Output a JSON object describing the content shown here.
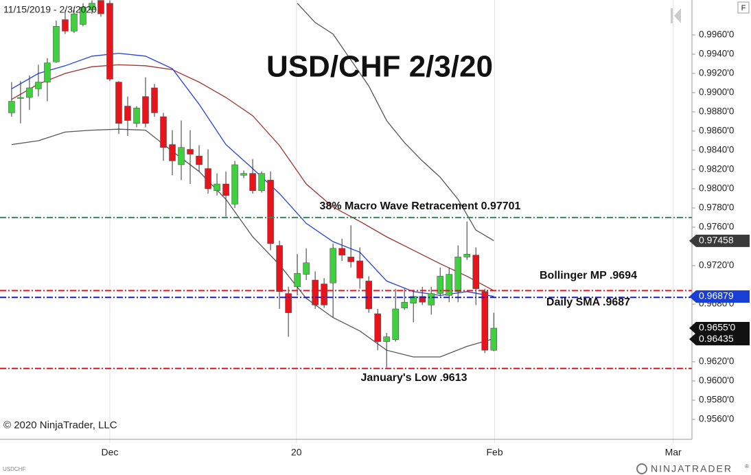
{
  "chart_data": {
    "type": "candlestick",
    "title": "USD/CHF 2/3/20",
    "subtitle": "11/15/2019 - 2/3/2020",
    "instrument": "USDCHF",
    "copyright": "© 2020 NinjaTrader, LLC",
    "brand": "NINJATRADER",
    "brand_mark": "®",
    "panel_button": "F",
    "x": [
      0,
      1,
      2,
      3,
      4,
      5,
      6,
      7,
      8,
      9,
      10,
      11,
      12,
      13,
      14,
      15,
      16,
      17,
      18,
      19,
      20,
      21,
      22,
      23,
      24,
      25,
      26,
      27,
      28,
      29,
      30,
      31,
      32,
      33,
      34,
      35,
      36,
      37,
      38,
      39,
      40,
      41,
      42,
      43,
      44,
      45,
      46,
      47,
      48,
      49,
      50,
      51,
      52,
      53,
      54
    ],
    "open": [
      0.9879,
      0.9894,
      0.9895,
      0.9904,
      0.9911,
      0.9932,
      0.9976,
      0.9964,
      0.9971,
      0.9986,
      0.9996,
      0.9993,
      0.9911,
      0.9886,
      0.9868,
      0.9896,
      0.9905,
      0.9875,
      0.9846,
      0.9825,
      0.9841,
      0.9834,
      0.9821,
      0.9798,
      0.9805,
      0.9784,
      0.9814,
      0.9816,
      0.9798,
      0.9809,
      0.9741,
      0.9691,
      0.9698,
      0.9711,
      0.9705,
      0.9701,
      0.9702,
      0.9738,
      0.9729,
      0.9725,
      0.9704,
      0.967,
      0.9641,
      0.9643,
      0.9676,
      0.9681,
      0.9688,
      0.9679,
      0.9691,
      0.9689,
      0.9693,
      0.9729,
      0.9731,
      0.9693,
      0.9632
    ],
    "high": [
      0.9911,
      0.9912,
      0.9918,
      0.9929,
      0.9936,
      0.9975,
      0.9986,
      0.9989,
      0.9993,
      0.9996,
      0.9996,
      0.9996,
      0.9912,
      0.9896,
      0.9886,
      0.9916,
      0.9909,
      0.9879,
      0.9861,
      0.9871,
      0.9861,
      0.9845,
      0.9841,
      0.9816,
      0.9818,
      0.9829,
      0.9819,
      0.9831,
      0.9818,
      0.9818,
      0.9746,
      0.9698,
      0.9732,
      0.9738,
      0.9714,
      0.9707,
      0.9743,
      0.9748,
      0.9762,
      0.9739,
      0.9709,
      0.9675,
      0.965,
      0.9696,
      0.9696,
      0.9693,
      0.9698,
      0.9698,
      0.9718,
      0.9718,
      0.9741,
      0.9766,
      0.9739,
      0.9696,
      0.9671
    ],
    "low": [
      0.9875,
      0.9868,
      0.9882,
      0.9896,
      0.9891,
      0.9931,
      0.9961,
      0.9962,
      0.9969,
      0.9982,
      0.9979,
      0.9912,
      0.9857,
      0.9855,
      0.9864,
      0.9864,
      0.9875,
      0.9829,
      0.9814,
      0.9809,
      0.9805,
      0.9818,
      0.9795,
      0.9793,
      0.9771,
      0.978,
      0.9811,
      0.9795,
      0.9796,
      0.9736,
      0.9675,
      0.9646,
      0.9689,
      0.9705,
      0.9675,
      0.9676,
      0.9666,
      0.9725,
      0.9718,
      0.9696,
      0.9671,
      0.9632,
      0.9614,
      0.9641,
      0.9674,
      0.9661,
      0.9679,
      0.9669,
      0.9688,
      0.9682,
      0.9682,
      0.9726,
      0.9679,
      0.9629,
      0.9631
    ],
    "close": [
      0.9891,
      0.9895,
      0.9905,
      0.9911,
      0.9931,
      0.9969,
      0.9964,
      0.9982,
      0.9989,
      0.9993,
      0.9982,
      0.9914,
      0.9868,
      0.9871,
      0.9884,
      0.9868,
      0.9879,
      0.9843,
      0.9829,
      0.9843,
      0.9836,
      0.9825,
      0.98,
      0.9805,
      0.9793,
      0.9825,
      0.9816,
      0.9798,
      0.9816,
      0.9743,
      0.9693,
      0.9671,
      0.9712,
      0.9723,
      0.9679,
      0.9679,
      0.9738,
      0.9731,
      0.9724,
      0.9707,
      0.9675,
      0.9641,
      0.9646,
      0.9675,
      0.9682,
      0.9688,
      0.9682,
      0.9691,
      0.9709,
      0.9711,
      0.9729,
      0.9732,
      0.9696,
      0.9632,
      0.9655
    ],
    "up_color": "#3fcf3f",
    "down_color": "#e8141c",
    "lines": [
      {
        "color": "#555555",
        "x": [
          32,
          34,
          36,
          38,
          40,
          42,
          44,
          46,
          48,
          50,
          52,
          54
        ],
        "values": [
          0.9993,
          0.9973,
          0.9961,
          0.9934,
          0.9907,
          0.9871,
          0.9848,
          0.9829,
          0.9812,
          0.9789,
          0.9757,
          0.9746
        ]
      },
      {
        "color": "#555555",
        "x": [
          0,
          3,
          6,
          9,
          12,
          15,
          18,
          21,
          24,
          27,
          30,
          33,
          36,
          39,
          42,
          45,
          48,
          51,
          54
        ],
        "values": [
          0.9846,
          0.985,
          0.9859,
          0.9861,
          0.9862,
          0.9861,
          0.9839,
          0.9818,
          0.9789,
          0.975,
          0.9721,
          0.9686,
          0.9666,
          0.9652,
          0.9632,
          0.9625,
          0.9625,
          0.9636,
          0.9644
        ]
      },
      {
        "color": "#a0302a",
        "x": [
          0,
          3,
          6,
          9,
          12,
          15,
          18,
          21,
          24,
          27,
          30,
          33,
          36,
          39,
          42,
          45,
          48,
          51,
          54
        ],
        "values": [
          0.9893,
          0.9909,
          0.992,
          0.9927,
          0.9929,
          0.9928,
          0.9924,
          0.9911,
          0.9895,
          0.9876,
          0.9845,
          0.9805,
          0.9781,
          0.9766,
          0.975,
          0.9736,
          0.9722,
          0.9709,
          0.9694
        ]
      },
      {
        "color": "#2040e0",
        "x": [
          0,
          3,
          6,
          9,
          12,
          15,
          18,
          21,
          24,
          27,
          30,
          33,
          36,
          39,
          42,
          45,
          48,
          51,
          54
        ],
        "values": [
          0.9904,
          0.992,
          0.9928,
          0.9938,
          0.9941,
          0.9938,
          0.9925,
          0.9888,
          0.9846,
          0.9821,
          0.9795,
          0.9764,
          0.9745,
          0.9734,
          0.9704,
          0.9693,
          0.9689,
          0.9693,
          0.9688
        ]
      }
    ],
    "hlines": [
      {
        "value": 0.97701,
        "color": "#2e8b57"
      },
      {
        "value": 0.9694,
        "color": "#e0141e"
      },
      {
        "value": 0.9687,
        "color": "#1a1acc"
      },
      {
        "value": 0.9613,
        "color": "#e0141e"
      }
    ],
    "annotations": [
      "38% Macro Wave Retracement 0.97701",
      "Bollinger MP .9694",
      "Daily SMA .9687",
      "January's Low .9613"
    ],
    "price_labels": [
      {
        "value": 0.97458,
        "label": "0.97458",
        "color": "#3a3a3a"
      },
      {
        "value": 0.96879,
        "label": "0.96879",
        "color": "#1a3fd6"
      },
      {
        "value": 0.9655,
        "label": "0.9655'0",
        "color": "#111111"
      },
      {
        "value": 0.96435,
        "label": "0.96435",
        "color": "#111111"
      }
    ],
    "xlim": [
      -1.3,
      76.2
    ],
    "xticks": [
      {
        "value": 11,
        "label": "Dec"
      },
      {
        "value": 31.9,
        "label": "20"
      },
      {
        "value": 54.1,
        "label": "Feb"
      },
      {
        "value": 74.1,
        "label": "Mar"
      }
    ],
    "ylim": [
      0.95393,
      0.99964
    ],
    "yticks": [
      {
        "value": 0.996,
        "label": "0.9960'0"
      },
      {
        "value": 0.994,
        "label": "0.9940'0"
      },
      {
        "value": 0.992,
        "label": "0.9920'0"
      },
      {
        "value": 0.99,
        "label": "0.9900'0"
      },
      {
        "value": 0.988,
        "label": "0.9880'0"
      },
      {
        "value": 0.986,
        "label": "0.9860'0"
      },
      {
        "value": 0.984,
        "label": "0.9840'0"
      },
      {
        "value": 0.982,
        "label": "0.9820'0"
      },
      {
        "value": 0.98,
        "label": "0.9800'0"
      },
      {
        "value": 0.978,
        "label": "0.9780'0"
      },
      {
        "value": 0.976,
        "label": "0.9760'0"
      },
      {
        "value": 0.972,
        "label": "0.9720'0"
      },
      {
        "value": 0.968,
        "label": "0.9680'0"
      },
      {
        "value": 0.962,
        "label": "0.9620'0"
      },
      {
        "value": 0.96,
        "label": "0.9600'0"
      },
      {
        "value": 0.958,
        "label": "0.9580'0"
      },
      {
        "value": 0.956,
        "label": "0.9560'0"
      }
    ]
  }
}
